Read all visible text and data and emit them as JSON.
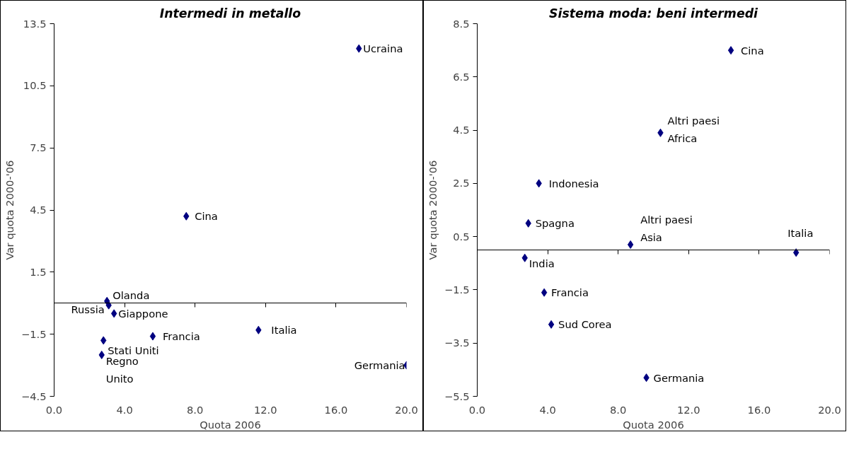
{
  "chart_data": [
    {
      "type": "scatter",
      "title": "Intermedi in metallo",
      "xlabel": "Quota 2006",
      "ylabel": "Var quota 2000-'06",
      "marker": "diamond",
      "xlim": [
        0,
        20
      ],
      "ylim": [
        -4.5,
        13.5
      ],
      "xticks": [
        {
          "value": 0,
          "label": "0.0"
        },
        {
          "value": 4,
          "label": "4.0"
        },
        {
          "value": 8,
          "label": "8.0"
        },
        {
          "value": 12,
          "label": "12.0"
        },
        {
          "value": 16,
          "label": "16.0"
        },
        {
          "value": 20,
          "label": "20.0"
        }
      ],
      "yticks": [
        -4.5,
        -1.5,
        1.5,
        4.5,
        7.5,
        10.5,
        13.5
      ],
      "ref_lines": [
        {
          "axis": "y",
          "value": 0,
          "color": "#000000"
        }
      ],
      "series": [
        {
          "color": "#000080",
          "x": [
            17.3,
            7.5,
            3.0,
            3.1,
            3.4,
            5.6,
            11.6,
            2.8,
            2.7,
            20.0
          ],
          "values": [
            12.3,
            4.2,
            0.1,
            -0.1,
            -0.5,
            -1.6,
            -1.3,
            -1.8,
            -2.5,
            -3.0
          ]
        }
      ],
      "annotations": [
        {
          "text": "Ucraina",
          "x": 17.3,
          "y": 12.3
        },
        {
          "text": "Cina",
          "x": 7.5,
          "y": 4.2
        },
        {
          "text": "Olanda",
          "x": 3.0,
          "y": 0.1
        },
        {
          "text": "Russia",
          "x": 3.1,
          "y": -0.1
        },
        {
          "text": "Giappone",
          "x": 3.4,
          "y": -0.5
        },
        {
          "text": "Francia",
          "x": 5.6,
          "y": -1.6
        },
        {
          "text": "Italia",
          "x": 11.6,
          "y": -1.3
        },
        {
          "text": "Stati Uniti",
          "x": 2.8,
          "y": -1.8
        },
        {
          "text": "Regno\nUnito",
          "x": 2.7,
          "y": -2.5
        },
        {
          "text": "Germania",
          "x": 20.0,
          "y": -3.0
        }
      ]
    },
    {
      "type": "scatter",
      "title": "Sistema moda: beni intermedi",
      "xlabel": "Quota 2006",
      "ylabel": "Var quota 2000-'06",
      "marker": "diamond",
      "xlim": [
        0,
        20
      ],
      "ylim": [
        -5.5,
        8.5
      ],
      "xticks": [
        {
          "value": 0,
          "label": "0.0"
        },
        {
          "value": 4,
          "label": "4.0"
        },
        {
          "value": 8,
          "label": "8.0"
        },
        {
          "value": 12,
          "label": "12.0"
        },
        {
          "value": 16,
          "label": "16.0"
        },
        {
          "value": 20,
          "label": "20.0"
        }
      ],
      "yticks": [
        -5.5,
        -3.5,
        -1.5,
        0.5,
        2.5,
        4.5,
        6.5,
        8.5
      ],
      "ref_lines": [
        {
          "axis": "y",
          "value": 0,
          "color": "#000000"
        }
      ],
      "series": [
        {
          "color": "#000080",
          "x": [
            14.4,
            10.4,
            3.5,
            2.9,
            8.7,
            18.1,
            2.7,
            3.8,
            4.2,
            9.6
          ],
          "values": [
            7.5,
            4.4,
            2.5,
            1.0,
            0.2,
            -0.1,
            -0.3,
            -1.6,
            -2.8,
            -4.8
          ]
        }
      ],
      "annotations": [
        {
          "text": "Cina",
          "x": 14.4,
          "y": 7.5
        },
        {
          "text": "Altri paesi\nAfrica",
          "x": 10.4,
          "y": 4.4
        },
        {
          "text": "Indonesia",
          "x": 3.5,
          "y": 2.5
        },
        {
          "text": "Spagna",
          "x": 2.9,
          "y": 1.0
        },
        {
          "text": "Altri paesi\nAsia",
          "x": 8.7,
          "y": 0.2
        },
        {
          "text": "Italia",
          "x": 18.1,
          "y": -0.1
        },
        {
          "text": "India",
          "x": 2.7,
          "y": -0.3
        },
        {
          "text": "Francia",
          "x": 3.8,
          "y": -1.6
        },
        {
          "text": "Sud Corea",
          "x": 4.2,
          "y": -2.8
        },
        {
          "text": "Germania",
          "x": 9.6,
          "y": -4.8
        }
      ]
    }
  ]
}
